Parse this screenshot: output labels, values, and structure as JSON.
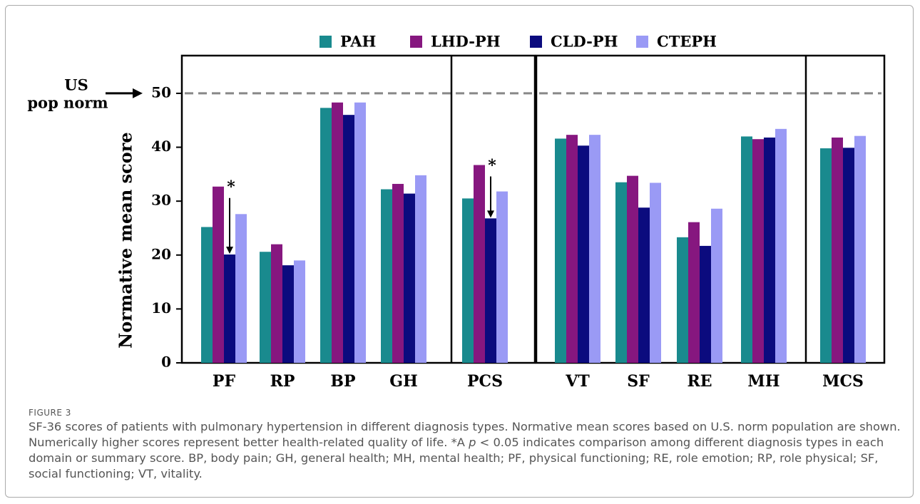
{
  "chart_data": {
    "type": "bar",
    "categories": [
      "PF",
      "RP",
      "BP",
      "GH",
      "PCS",
      "VT",
      "SF",
      "RE",
      "MH",
      "MCS"
    ],
    "series": [
      {
        "name": "PAH",
        "color": "#198a8e",
        "values": [
          25.2,
          20.6,
          47.3,
          32.2,
          30.5,
          41.6,
          33.5,
          23.3,
          42.0,
          39.8
        ]
      },
      {
        "name": "LHD-PH",
        "color": "#86177f",
        "values": [
          32.7,
          22.0,
          48.3,
          33.2,
          36.7,
          42.3,
          34.7,
          26.1,
          41.5,
          41.8
        ]
      },
      {
        "name": "CLD-PH",
        "color": "#0b0b7e",
        "values": [
          20.1,
          18.1,
          46.0,
          31.4,
          26.8,
          40.3,
          28.8,
          21.7,
          41.8,
          39.9
        ]
      },
      {
        "name": "CTEPH",
        "color": "#9a9af5",
        "values": [
          27.6,
          19.0,
          48.3,
          34.8,
          31.8,
          42.3,
          33.4,
          28.6,
          43.4,
          42.1
        ]
      }
    ],
    "ylabel": "Normative mean score",
    "ylim": [
      0,
      57
    ],
    "yticks": [
      0,
      10,
      20,
      30,
      40,
      50
    ],
    "reference_value": 50,
    "reference_label": [
      "US",
      "pop norm"
    ],
    "annotations": [
      {
        "text": "*",
        "x": "PF"
      },
      {
        "text": "*",
        "x": "PCS"
      }
    ],
    "legend": "top"
  },
  "figure_label": "FIGURE 3",
  "caption": [
    "SF-36 scores of patients with pulmonary hypertension in different diagnosis types. Normative mean scores based on U.S. norm population are shown. Numerically higher scores represent better health-related quality of life. *A ",
    "p",
    " < 0.05 indicates comparison among different diagnosis types in each domain or summary score. BP, body pain; GH, general health; MH, mental health; PF, physical functioning; RE, role emotion; RP, role physical; SF, social functioning; VT, vitality."
  ]
}
